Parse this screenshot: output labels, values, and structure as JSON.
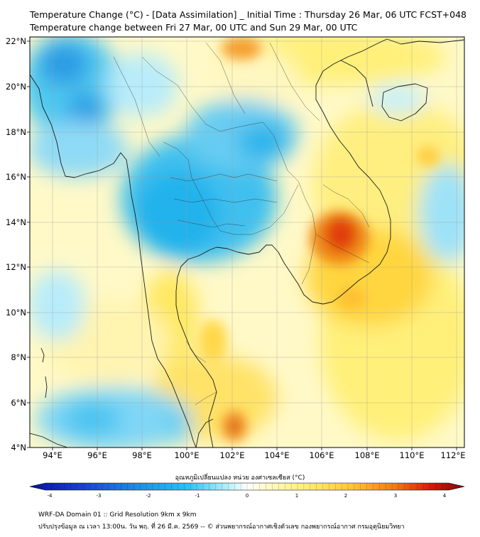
{
  "title": {
    "line1": "Temperature Change (°C) - [Data Assimilation] _ Initial Time : Thursday 26 Mar, 06 UTC FCST+048",
    "line2": "Temperature change between Fri 27 Mar, 00 UTC and Sun 29 Mar, 00 UTC"
  },
  "map": {
    "lon_labels": [
      "94°E",
      "96°E",
      "98°E",
      "100°E",
      "102°E",
      "104°E",
      "106°E",
      "108°E",
      "110°E",
      "112°E"
    ],
    "lat_labels": [
      "22°N",
      "20°N",
      "18°N",
      "16°N",
      "14°N",
      "12°N",
      "10°N",
      "8°N",
      "6°N",
      "4°N"
    ],
    "extent": {
      "lon": [
        93,
        112.4
      ],
      "lat": [
        4,
        22.2
      ]
    }
  },
  "colorbar": {
    "title": "อุณหภูมิเปลี่ยนแปลง หน่วย องศาเซลเซียส (°C)",
    "ticks": [
      "-4",
      "-3",
      "-2",
      "-1",
      "0",
      "1",
      "2",
      "3",
      "4"
    ],
    "range": [
      -4,
      4
    ]
  },
  "footer": {
    "line1": "WRF-DA Domain 01 :: Grid Resolution 9km x 9km",
    "line2": "ปรับปรุงข้อมูล ณ เวลา 13:00น. วัน พฤ. ที่ 26 มี.ค. 2569 -- © ส่วนพยากรณ์อากาศเชิงตัวเลข กองพยากรณ์อากาศ กรมอุตุนิยมวิทยา"
  },
  "colors": {
    "cold_strong": "#1a6fd6",
    "cold": "#22b0ee",
    "cool": "#a8e6fa",
    "neutral": "#ffffff",
    "warm": "#fff59a",
    "warmer": "#ffd23c",
    "hot": "#f07a10",
    "very_hot": "#d42000"
  }
}
